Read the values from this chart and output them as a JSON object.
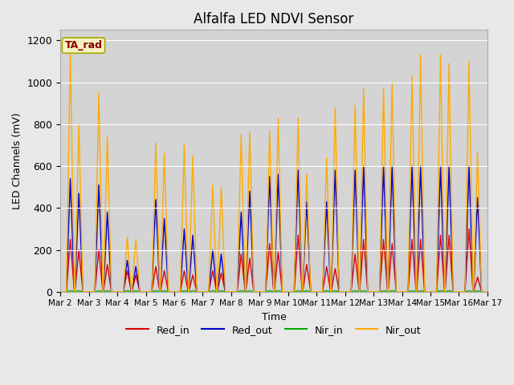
{
  "title": "Alfalfa LED NDVI Sensor",
  "xlabel": "Time",
  "ylabel": "LED Channels (mV)",
  "ylim": [
    0,
    1250
  ],
  "background_color": "#e8e8e8",
  "plot_bg_color": "#d4d4d4",
  "legend_label": "TA_rad",
  "legend_box_color": "#f5f0c0",
  "legend_text_color": "#8b0000",
  "series": {
    "Red_in": {
      "color": "#dd0000",
      "lw": 1.0
    },
    "Red_out": {
      "color": "#0000cc",
      "lw": 1.0
    },
    "Nir_in": {
      "color": "#00aa00",
      "lw": 1.0
    },
    "Nir_out": {
      "color": "#ffaa00",
      "lw": 1.0
    }
  },
  "xtick_labels": [
    "Mar 2",
    "Mar 3",
    "Mar 4",
    "Mar 5",
    "Mar 6",
    "Mar 7",
    "Mar 8",
    "Mar 9",
    "Mar 10",
    "Mar 11",
    "Mar 12",
    "Mar 13",
    "Mar 14",
    "Mar 15",
    "Mar 16",
    "Mar 17"
  ],
  "ytick_labels": [
    "0",
    "200",
    "400",
    "600",
    "800",
    "1000",
    "1200"
  ],
  "ytick_positions": [
    0,
    200,
    400,
    600,
    800,
    1000,
    1200
  ],
  "day_peaks": {
    "Red_in": [
      250,
      200,
      100,
      120,
      100,
      100,
      180,
      230,
      270,
      120,
      180,
      250,
      250,
      270,
      300
    ],
    "Red_out": [
      540,
      510,
      150,
      440,
      300,
      200,
      380,
      550,
      580,
      430,
      580,
      600,
      600,
      600,
      600
    ],
    "Nir_in": [
      5,
      5,
      5,
      5,
      5,
      5,
      5,
      5,
      5,
      5,
      5,
      5,
      5,
      5,
      5
    ],
    "Nir_out": [
      1150,
      950,
      260,
      710,
      700,
      510,
      750,
      770,
      830,
      640,
      890,
      970,
      1030,
      1130,
      1100
    ]
  },
  "day_peaks2": {
    "Red_in": [
      200,
      130,
      80,
      100,
      80,
      90,
      160,
      190,
      130,
      110,
      250,
      230,
      250,
      270,
      70
    ],
    "Red_out": [
      470,
      380,
      120,
      350,
      270,
      180,
      480,
      560,
      430,
      580,
      600,
      600,
      600,
      600,
      450
    ],
    "Nir_in": [
      5,
      5,
      5,
      5,
      5,
      5,
      5,
      5,
      5,
      5,
      5,
      5,
      5,
      5,
      5
    ],
    "Nir_out": [
      800,
      740,
      250,
      660,
      650,
      500,
      760,
      830,
      560,
      880,
      970,
      1000,
      1130,
      1090,
      670
    ]
  }
}
